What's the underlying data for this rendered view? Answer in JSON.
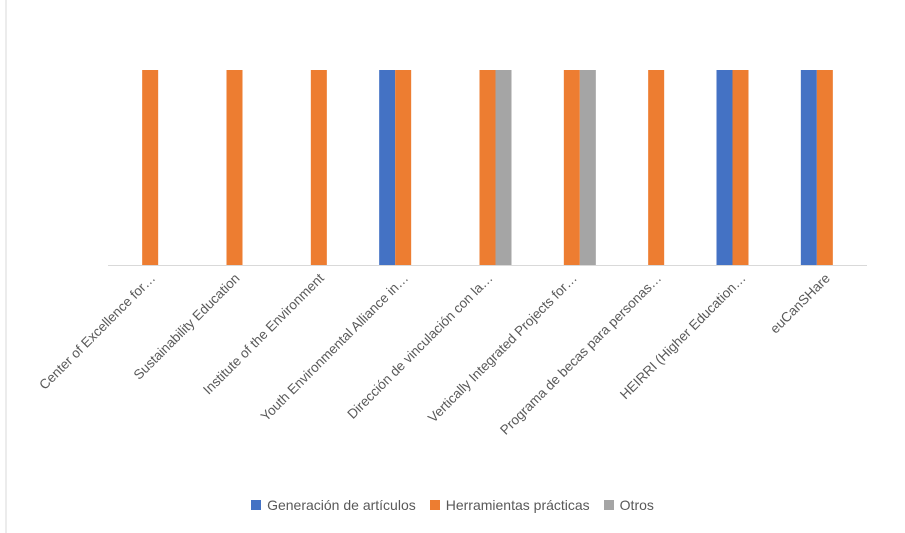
{
  "chart_data": {
    "type": "bar",
    "title": "",
    "categories": [
      "Center of Excellence for…",
      "Sustainability Education",
      "Institute of the Environment",
      "Youth Environmental Alliance in…",
      "Dirección de vinculación con la…",
      "Vertically Integrated Projects for…",
      "Programa de becas para personas…",
      "HEIRRI (Higher Education…",
      "euCanSHare"
    ],
    "series": [
      {
        "name": "Generación de artículos",
        "color": "#4472C4",
        "values": [
          0,
          0,
          0,
          1,
          0,
          0,
          0,
          1,
          1
        ]
      },
      {
        "name": "Herramientas prácticas",
        "color": "#ED7D31",
        "values": [
          1,
          1,
          1,
          1,
          1,
          1,
          1,
          1,
          1
        ]
      },
      {
        "name": "Otros",
        "color": "#A5A5A5",
        "values": [
          0,
          0,
          0,
          0,
          1,
          1,
          0,
          0,
          0
        ]
      }
    ],
    "ylim": [
      0,
      1
    ],
    "grid": false,
    "legend_position": "bottom",
    "xlabel": "",
    "ylabel": ""
  }
}
